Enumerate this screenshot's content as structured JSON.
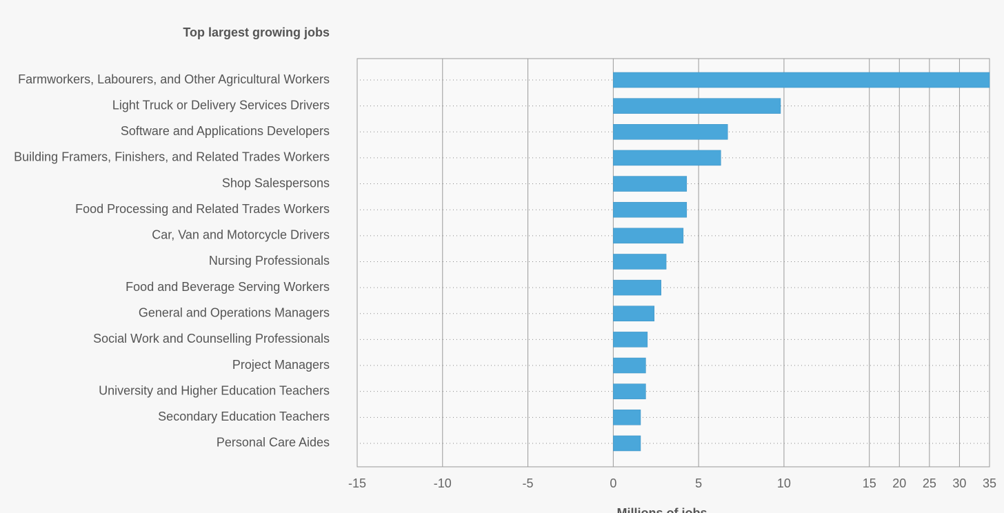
{
  "chart_data": {
    "type": "barh",
    "title": "Top largest growing jobs",
    "categories": [
      "Farmworkers, Labourers, and Other Agricultural Workers",
      "Light Truck or Delivery Services Drivers",
      "Software and Applications Developers",
      "Building Framers, Finishers, and Related Trades Workers",
      "Shop Salespersons",
      "Food Processing and Related Trades Workers",
      "Car, Van and Motorcycle Drivers",
      "Nursing Professionals",
      "Food and Beverage Serving Workers",
      "General and Operations Managers",
      "Social Work and Counselling Professionals",
      "Project Managers",
      "University and Higher Education Teachers",
      "Secondary Education Teachers",
      "Personal Care Aides"
    ],
    "values": [
      35,
      9.8,
      6.7,
      6.3,
      4.3,
      4.3,
      4.1,
      3.1,
      2.8,
      2.4,
      2.0,
      1.9,
      1.9,
      1.6,
      1.6
    ],
    "color": "#4aa7da",
    "xlabel": "Millions of jobs",
    "xlim": [
      -15,
      35
    ],
    "xticks": [
      -15,
      -10,
      -5,
      0,
      5,
      10,
      15,
      20,
      25,
      30,
      35
    ],
    "grid": true
  }
}
